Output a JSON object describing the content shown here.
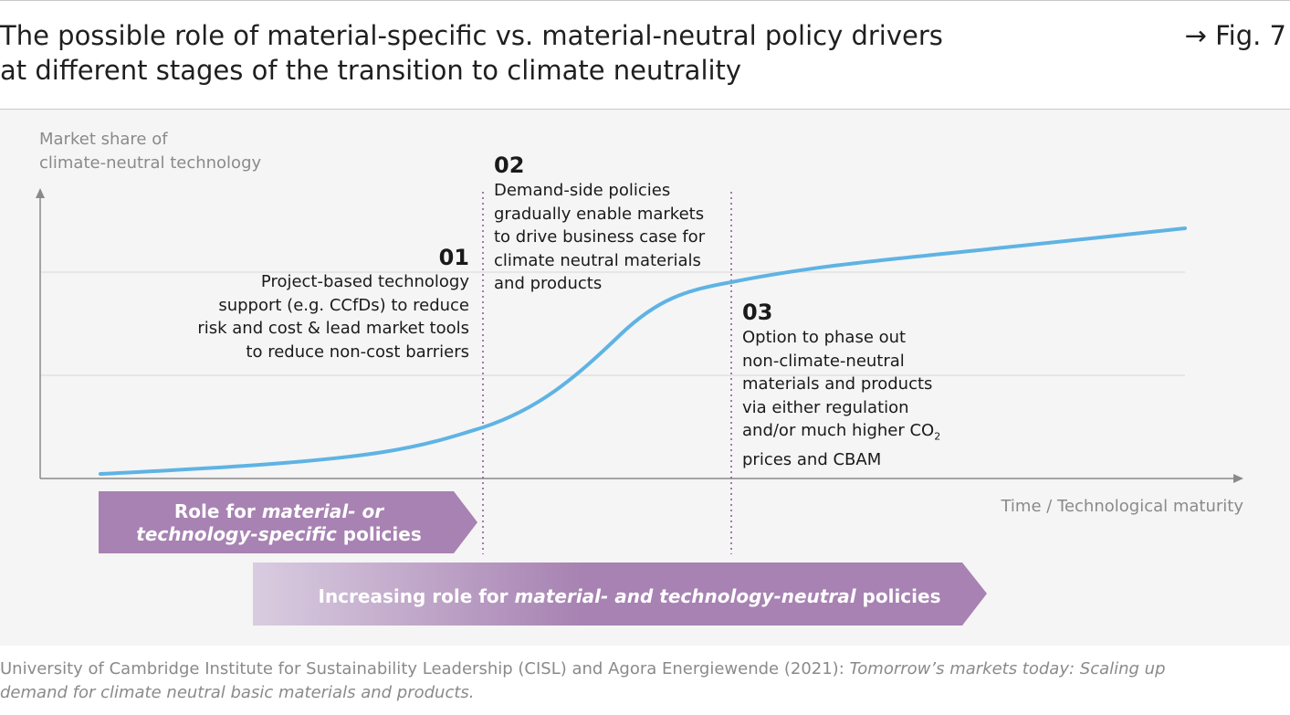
{
  "header": {
    "title_line1": "The possible role of material-specific vs. material-neutral policy drivers",
    "title_line2": "at different stages of the transition to climate neutrality",
    "fig_ref": "→ Fig. 7"
  },
  "axes": {
    "ylabel_line1": "Market share of",
    "ylabel_line2": "climate-neutral technology",
    "xlabel": "Time / Technological maturity"
  },
  "stages": [
    {
      "num": "01",
      "lines": [
        "Project-based technology",
        "support (e.g. CCfDs) to reduce",
        "risk and cost & lead market tools",
        "to reduce non-cost barriers"
      ]
    },
    {
      "num": "02",
      "lines": [
        "Demand-side policies",
        "gradually enable markets",
        "to drive business case for",
        "climate neutral materials",
        "and products"
      ]
    },
    {
      "num": "03",
      "lines": [
        "Option to phase out",
        "non-climate-neutral",
        "materials and products",
        "via either regulation",
        "and/or much higher CO",
        "prices and CBAM"
      ],
      "subscript": "2"
    }
  ],
  "arrows": {
    "specific": {
      "prefix": "Role for ",
      "italic_line1": "material- or",
      "italic_line2": "technology-specific",
      "suffix": " policies"
    },
    "neutral": {
      "prefix": "Increasing role for ",
      "italic": "material- and technology-neutral",
      "suffix": " policies"
    }
  },
  "colors": {
    "curve": "#5fb3e4",
    "arrow_purple": "#a782b2",
    "divider": "#8d4f97"
  },
  "source": {
    "line1_plain": "University of Cambridge Institute for Sustainability Leadership (CISL) and Agora Energiewende (2021): ",
    "line1_italic": "Tomorrow’s markets today: Scaling up",
    "line2_italic": "demand for climate neutral basic materials and products."
  }
}
